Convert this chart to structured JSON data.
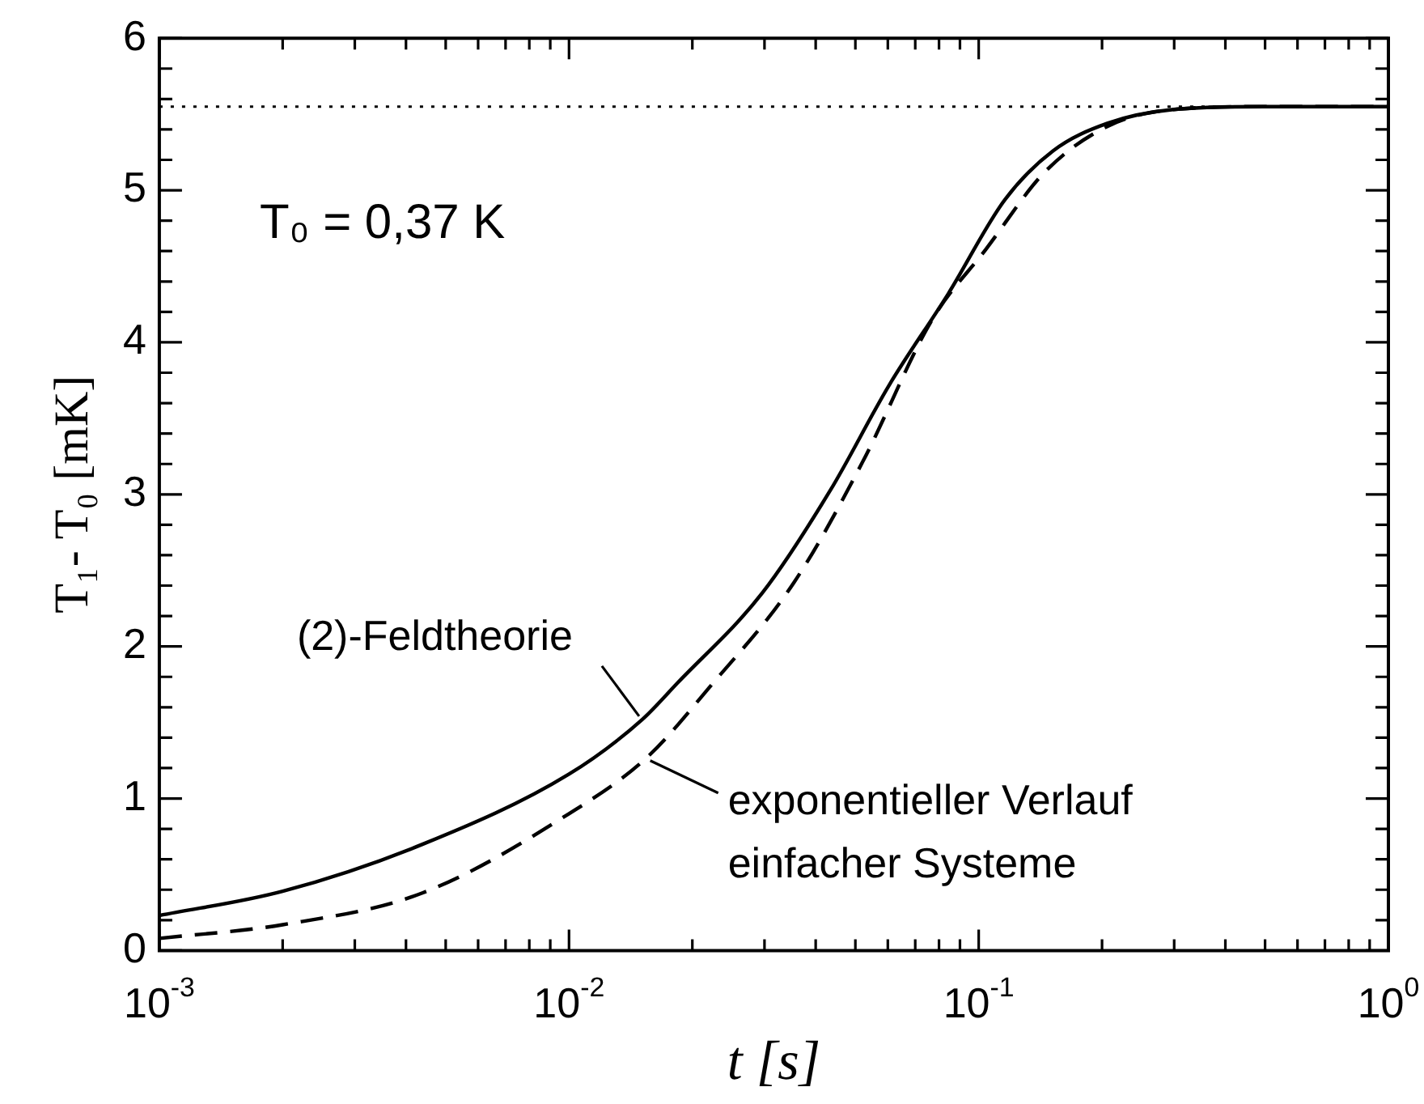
{
  "chart_data": {
    "type": "line",
    "xlabel": "t [s]",
    "ylabel": "T₁- T₀ [mK]",
    "log": "x",
    "marker": "none",
    "xlim": [
      0.001,
      1
    ],
    "ylim": [
      0,
      6
    ],
    "xticks": [
      {
        "value": 0.001,
        "label": "10$^{-3}$"
      },
      {
        "value": 0.002,
        "label": null
      },
      {
        "value": 0.003,
        "label": null
      },
      {
        "value": 0.004,
        "label": null
      },
      {
        "value": 0.005,
        "label": null
      },
      {
        "value": 0.006,
        "label": null
      },
      {
        "value": 0.007,
        "label": null
      },
      {
        "value": 0.008,
        "label": null
      },
      {
        "value": 0.009,
        "label": null
      },
      {
        "value": 0.01,
        "label": "10$^{-2}$"
      },
      {
        "value": 0.02,
        "label": null
      },
      {
        "value": 0.03,
        "label": null
      },
      {
        "value": 0.04,
        "label": null
      },
      {
        "value": 0.05,
        "label": null
      },
      {
        "value": 0.06,
        "label": null
      },
      {
        "value": 0.07,
        "label": null
      },
      {
        "value": 0.08,
        "label": null
      },
      {
        "value": 0.09,
        "label": null
      },
      {
        "value": 0.1,
        "label": "10$^{-1}$"
      },
      {
        "value": 0.2,
        "label": null
      },
      {
        "value": 0.3,
        "label": null
      },
      {
        "value": 0.4,
        "label": null
      },
      {
        "value": 0.5,
        "label": null
      },
      {
        "value": 0.6,
        "label": null
      },
      {
        "value": 0.7,
        "label": null
      },
      {
        "value": 0.8,
        "label": null
      },
      {
        "value": 0.9,
        "label": null
      },
      {
        "value": 1,
        "label": "10$^{0}$"
      }
    ],
    "yticks": [
      0,
      {
        "value": 0.2,
        "label": null
      },
      {
        "value": 0.4,
        "label": null
      },
      {
        "value": 0.6,
        "label": null
      },
      {
        "value": 0.8,
        "label": null
      },
      1,
      {
        "value": 1.2,
        "label": null
      },
      {
        "value": 1.4,
        "label": null
      },
      {
        "value": 1.6,
        "label": null
      },
      {
        "value": 1.8,
        "label": null
      },
      2,
      {
        "value": 2.2,
        "label": null
      },
      {
        "value": 2.4,
        "label": null
      },
      {
        "value": 2.6,
        "label": null
      },
      {
        "value": 2.8,
        "label": null
      },
      3,
      {
        "value": 3.2,
        "label": null
      },
      {
        "value": 3.4,
        "label": null
      },
      {
        "value": 3.6,
        "label": null
      },
      {
        "value": 3.8,
        "label": null
      },
      4,
      {
        "value": 4.2,
        "label": null
      },
      {
        "value": 4.4,
        "label": null
      },
      {
        "value": 4.6,
        "label": null
      },
      {
        "value": 4.8,
        "label": null
      },
      5,
      {
        "value": 5.2,
        "label": null
      },
      {
        "value": 5.4,
        "label": null
      },
      {
        "value": 5.6,
        "label": null
      },
      {
        "value": 5.8,
        "label": null
      },
      6
    ],
    "series": [
      {
        "color": "#000000",
        "line_style": "solid",
        "x": [
          0.001,
          0.002,
          0.0044,
          0.01,
          0.0151,
          0.0184,
          0.0296,
          0.0435,
          0.0605,
          0.0843,
          0.116,
          0.152,
          0.206,
          0.296,
          0.5,
          1
        ],
        "values": [
          0.23,
          0.39,
          0.7,
          1.16,
          1.52,
          1.76,
          2.35,
          3.03,
          3.72,
          4.32,
          4.94,
          5.26,
          5.44,
          5.53,
          5.55,
          5.55
        ]
      },
      {
        "color": "#000000",
        "line_style": "dashed",
        "x": [
          0.001,
          0.002,
          0.0044,
          0.01,
          0.0155,
          0.022,
          0.0354,
          0.052,
          0.077,
          0.104,
          0.145,
          0.206,
          0.296,
          0.5,
          1
        ],
        "values": [
          0.08,
          0.17,
          0.38,
          0.9,
          1.27,
          1.73,
          2.42,
          3.21,
          4.15,
          4.61,
          5.12,
          5.42,
          5.53,
          5.55,
          5.55
        ]
      }
    ],
    "ref_lines": [
      {
        "axis": "y",
        "value": 5.55,
        "line_style": "dotted",
        "color": "#000000"
      }
    ],
    "annotations": [
      "T₀ = 0,37 K",
      {
        "text": "(2)-Feldtheorie",
        "x": 0.0151,
        "y": 1.52
      },
      {
        "text": "exponentieller Verlauf\neinfacher Systeme",
        "x": 0.0155,
        "y": 1.27
      }
    ]
  }
}
